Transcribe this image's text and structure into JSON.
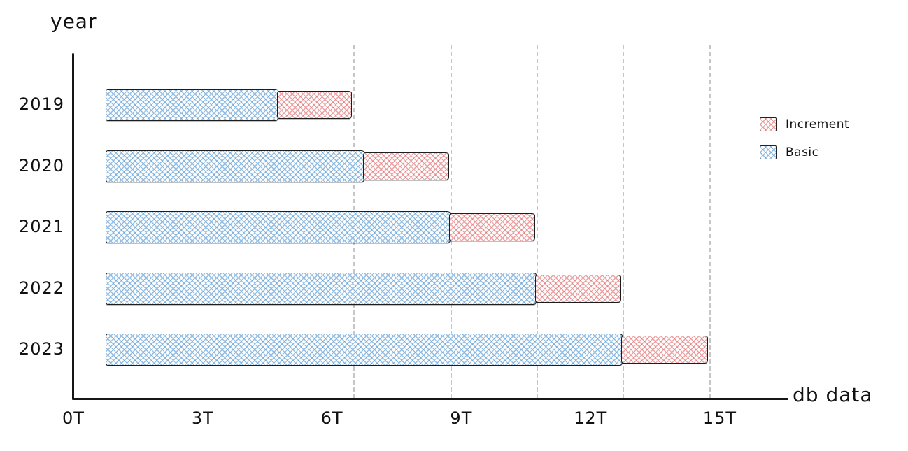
{
  "chart_data": {
    "type": "bar",
    "orientation": "horizontal",
    "stacked": true,
    "style": "hand-drawn-sketch",
    "title": "",
    "xlabel": "db data",
    "ylabel": "year",
    "categories": [
      "2019",
      "2020",
      "2021",
      "2022",
      "2023"
    ],
    "series": [
      {
        "name": "Basic",
        "values": [
          4,
          6,
          8,
          10,
          12
        ],
        "color": "#5b9bd5",
        "pattern": "crosshatch"
      },
      {
        "name": "Increment",
        "values": [
          1.75,
          2,
          2,
          2,
          2
        ],
        "color": "#e06666",
        "pattern": "crosshatch"
      }
    ],
    "bar_start_offset_T": 0.75,
    "x_ticks": [
      {
        "value": 0,
        "label": "0T"
      },
      {
        "value": 3,
        "label": "3T"
      },
      {
        "value": 6,
        "label": "6T"
      },
      {
        "value": 9,
        "label": "9T"
      },
      {
        "value": 12,
        "label": "12T"
      },
      {
        "value": 15,
        "label": "15T"
      }
    ],
    "xlim": [
      0,
      16.5
    ],
    "grid": "dashed vertical lines at each bar end",
    "legend_position": "right",
    "legend": [
      {
        "label": "Increment",
        "color": "#e06666"
      },
      {
        "label": "Basic",
        "color": "#5b9bd5"
      }
    ]
  }
}
